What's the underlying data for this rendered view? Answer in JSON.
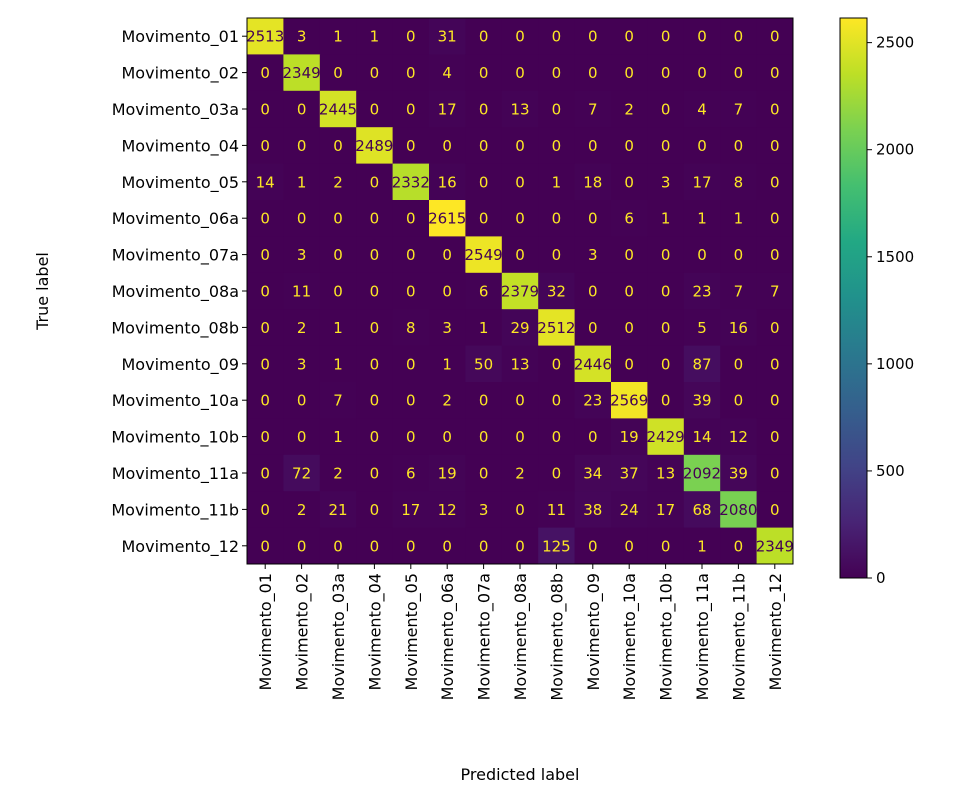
{
  "chart_data": {
    "type": "heatmap",
    "title": "",
    "xlabel": "Predicted label",
    "ylabel": "True label",
    "x_categories": [
      "Movimento_01",
      "Movimento_02",
      "Movimento_03a",
      "Movimento_04",
      "Movimento_05",
      "Movimento_06a",
      "Movimento_07a",
      "Movimento_08a",
      "Movimento_08b",
      "Movimento_09",
      "Movimento_10a",
      "Movimento_10b",
      "Movimento_11a",
      "Movimento_11b",
      "Movimento_12"
    ],
    "y_categories": [
      "Movimento_01",
      "Movimento_02",
      "Movimento_03a",
      "Movimento_04",
      "Movimento_05",
      "Movimento_06a",
      "Movimento_07a",
      "Movimento_08a",
      "Movimento_08b",
      "Movimento_09",
      "Movimento_10a",
      "Movimento_10b",
      "Movimento_11a",
      "Movimento_11b",
      "Movimento_12"
    ],
    "values": [
      [
        2513,
        3,
        1,
        1,
        0,
        31,
        0,
        0,
        0,
        0,
        0,
        0,
        0,
        0,
        0
      ],
      [
        0,
        2349,
        0,
        0,
        0,
        4,
        0,
        0,
        0,
        0,
        0,
        0,
        0,
        0,
        0
      ],
      [
        0,
        0,
        2445,
        0,
        0,
        17,
        0,
        13,
        0,
        7,
        2,
        0,
        4,
        7,
        0
      ],
      [
        0,
        0,
        0,
        2489,
        0,
        0,
        0,
        0,
        0,
        0,
        0,
        0,
        0,
        0,
        0
      ],
      [
        14,
        1,
        2,
        0,
        2332,
        16,
        0,
        0,
        1,
        18,
        0,
        3,
        17,
        8,
        0
      ],
      [
        0,
        0,
        0,
        0,
        0,
        2615,
        0,
        0,
        0,
        0,
        6,
        1,
        1,
        1,
        0
      ],
      [
        0,
        3,
        0,
        0,
        0,
        0,
        2549,
        0,
        0,
        3,
        0,
        0,
        0,
        0,
        0
      ],
      [
        0,
        11,
        0,
        0,
        0,
        0,
        6,
        2379,
        32,
        0,
        0,
        0,
        23,
        7,
        7
      ],
      [
        0,
        2,
        1,
        0,
        8,
        3,
        1,
        29,
        2512,
        0,
        0,
        0,
        5,
        16,
        0
      ],
      [
        0,
        3,
        1,
        0,
        0,
        1,
        50,
        13,
        0,
        2446,
        0,
        0,
        87,
        0,
        0
      ],
      [
        0,
        0,
        7,
        0,
        0,
        2,
        0,
        0,
        0,
        23,
        2569,
        0,
        39,
        0,
        0
      ],
      [
        0,
        0,
        1,
        0,
        0,
        0,
        0,
        0,
        0,
        0,
        19,
        2429,
        14,
        12,
        0
      ],
      [
        0,
        72,
        2,
        0,
        6,
        19,
        0,
        2,
        0,
        34,
        37,
        13,
        2092,
        39,
        0
      ],
      [
        0,
        2,
        21,
        0,
        17,
        12,
        3,
        0,
        11,
        38,
        24,
        17,
        68,
        2080,
        0
      ],
      [
        0,
        0,
        0,
        0,
        0,
        0,
        0,
        0,
        125,
        0,
        0,
        0,
        1,
        0,
        2349
      ]
    ],
    "colormap": "viridis",
    "vmin": 0,
    "vmax": 2615,
    "colorbar_ticks": [
      0,
      500,
      1000,
      1500,
      2000,
      2500
    ],
    "grid": false,
    "legend": "colorbar-right"
  }
}
